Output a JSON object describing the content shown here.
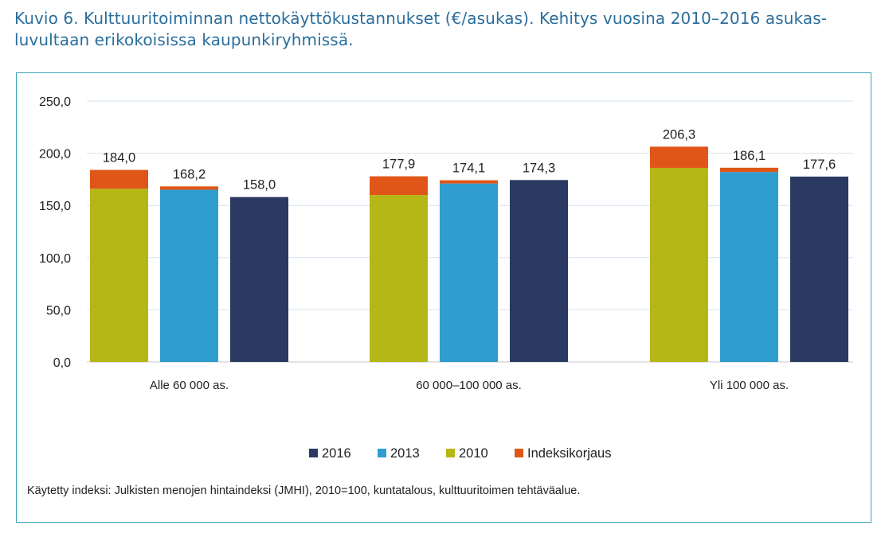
{
  "page": {
    "title": "Kuvio 6. Kulttuuritoiminnan nettokäyttökustannukset (€/asukas). Kehitys vuosina 2010–2016 asukas-luvultaan erikokoisissa kaupunkiryhmissä.",
    "footnote": "Käytetty indeksi: Julkisten menojen hintaindeksi (JMHI), 2010=100, kuntatalous, kulttuuritoimen tehtäväalue."
  },
  "chart_data": {
    "type": "bar",
    "title": "",
    "xlabel": "",
    "ylabel": "",
    "ylim": [
      0,
      250
    ],
    "yticks": [
      0,
      50,
      100,
      150,
      200,
      250
    ],
    "ytick_labels": [
      "0,0",
      "50,0",
      "100,0",
      "150,0",
      "200,0",
      "250,0"
    ],
    "grid": true,
    "legend_position": "bottom",
    "categories": [
      "Alle 60 000 as.",
      "60 000–100 000 as.",
      "Yli 100 000 as."
    ],
    "series": [
      {
        "name": "2010",
        "color": "#b5b716",
        "base_values": [
          166.0,
          160.0,
          186.0
        ],
        "indexed_totals": [
          184.0,
          177.9,
          206.3
        ],
        "total_labels": [
          "184,0",
          "177,9",
          "206,3"
        ]
      },
      {
        "name": "2013",
        "color": "#2f9ecf",
        "base_values": [
          165.0,
          171.0,
          182.0
        ],
        "indexed_totals": [
          168.2,
          174.1,
          186.1
        ],
        "total_labels": [
          "168,2",
          "174,1",
          "186,1"
        ]
      },
      {
        "name": "2016",
        "color": "#2a3a62",
        "base_values": [
          158.0,
          174.3,
          177.6
        ],
        "indexed_totals": [
          158.0,
          174.3,
          177.6
        ],
        "total_labels": [
          "158,0",
          "174,3",
          "177,6"
        ]
      }
    ],
    "index_correction": {
      "name": "Indeksikorjaus",
      "color": "#e05618"
    },
    "legend": [
      {
        "name": "2016",
        "color": "#2a3a62"
      },
      {
        "name": "2013",
        "color": "#2f9ecf"
      },
      {
        "name": "2010",
        "color": "#b5b716"
      },
      {
        "name": "Indeksikorjaus",
        "color": "#e05618"
      }
    ]
  }
}
